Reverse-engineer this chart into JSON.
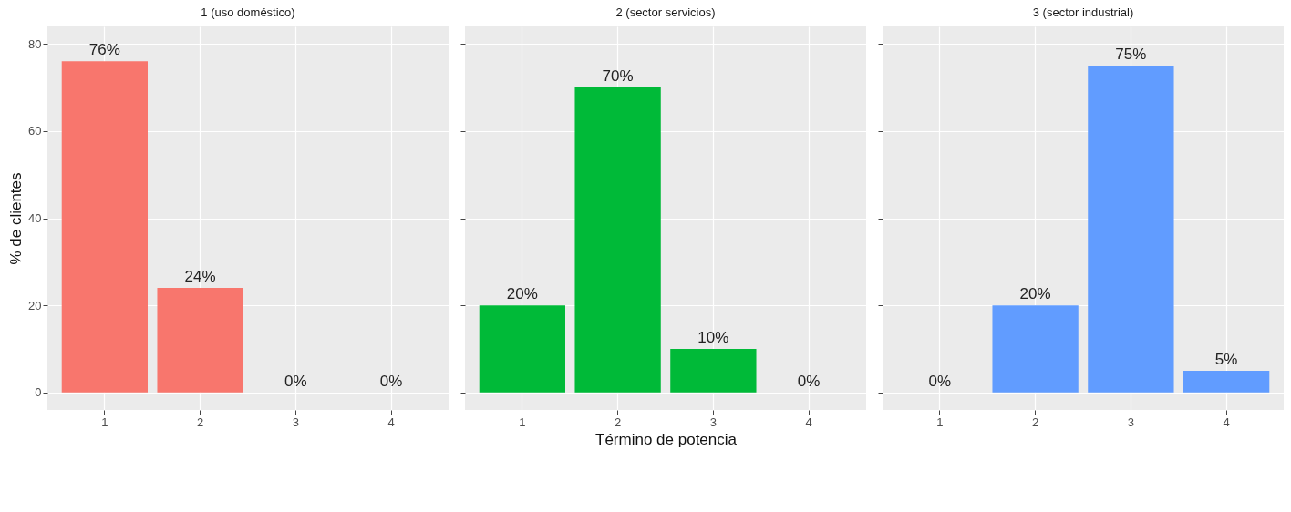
{
  "chart_data": [
    {
      "type": "bar",
      "title": "1 (uso doméstico)",
      "ylabel": "% de clientes",
      "categories": [
        "1",
        "2",
        "3",
        "4"
      ],
      "values": [
        76,
        24,
        0,
        0
      ],
      "value_labels": [
        "76%",
        "24%",
        "0%",
        "0%"
      ],
      "color": "#f8766d",
      "ylim": [
        -4,
        84
      ],
      "yticks": [
        0,
        20,
        40,
        60,
        80
      ],
      "grid": true
    },
    {
      "type": "bar",
      "title": "2 (sector servicios)",
      "xlabel": "Término de potencia",
      "categories": [
        "1",
        "2",
        "3",
        "4"
      ],
      "values": [
        20,
        70,
        10,
        0
      ],
      "value_labels": [
        "20%",
        "70%",
        "10%",
        "0%"
      ],
      "color": "#00ba38",
      "ylim": [
        -4,
        84
      ],
      "yticks": [
        0,
        20,
        40,
        60,
        80
      ],
      "grid": true,
      "tick_labels": "x"
    },
    {
      "type": "bar",
      "title": "3 (sector industrial)",
      "categories": [
        "1",
        "2",
        "3",
        "4"
      ],
      "values": [
        0,
        20,
        75,
        5
      ],
      "value_labels": [
        "0%",
        "20%",
        "75%",
        "5%"
      ],
      "color": "#619cff",
      "ylim": [
        -4,
        84
      ],
      "yticks": [
        0,
        20,
        40,
        60,
        80
      ],
      "grid": true,
      "tick_labels": "x"
    }
  ]
}
